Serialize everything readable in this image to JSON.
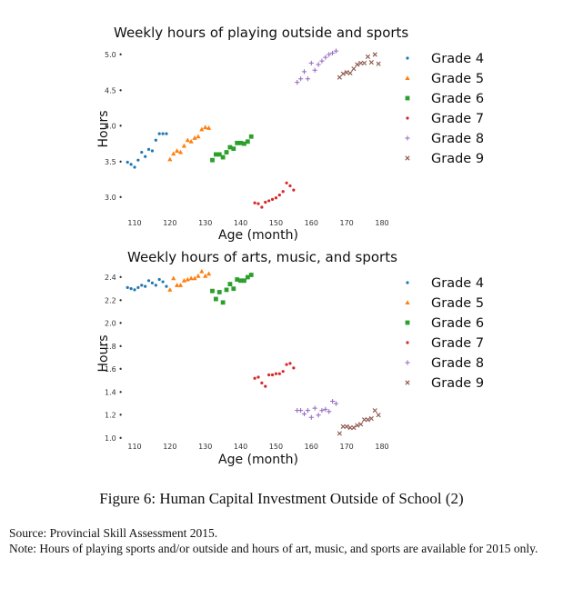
{
  "chart_data": [
    {
      "type": "scatter",
      "title": "Weekly hours of playing outside and sports",
      "xlabel": "Age (month)",
      "ylabel": "Hours",
      "xlim": [
        107,
        181
      ],
      "ylim": [
        2.8,
        5.1
      ],
      "xticks": [
        110,
        120,
        130,
        140,
        150,
        160,
        170,
        180
      ],
      "yticks": [
        3.0,
        3.5,
        4.0,
        4.5,
        5.0
      ],
      "ytick_labels": [
        "3.0",
        "3.5",
        "4.0",
        "4.5",
        "5.0"
      ],
      "legend": "right",
      "series": [
        {
          "name": "Grade 4",
          "color": "#1f77b4",
          "marker": "dot",
          "x": [
            108,
            109,
            110,
            111,
            112,
            113,
            114,
            115,
            116,
            117,
            118,
            119
          ],
          "y": [
            3.49,
            3.46,
            3.42,
            3.52,
            3.63,
            3.57,
            3.67,
            3.65,
            3.8,
            3.89,
            3.89,
            3.89
          ]
        },
        {
          "name": "Grade 5",
          "color": "#ff7f0e",
          "marker": "triangle",
          "x": [
            120,
            121,
            122,
            123,
            124,
            125,
            126,
            127,
            128,
            129,
            130,
            131
          ],
          "y": [
            3.53,
            3.61,
            3.65,
            3.63,
            3.72,
            3.8,
            3.78,
            3.83,
            3.85,
            3.95,
            3.98,
            3.97
          ]
        },
        {
          "name": "Grade 6",
          "color": "#2ca02c",
          "marker": "square",
          "x": [
            132,
            133,
            134,
            135,
            136,
            137,
            138,
            139,
            140,
            141,
            142,
            143
          ],
          "y": [
            3.52,
            3.6,
            3.6,
            3.56,
            3.63,
            3.7,
            3.68,
            3.76,
            3.76,
            3.75,
            3.78,
            3.85
          ]
        },
        {
          "name": "Grade 7",
          "color": "#d62728",
          "marker": "dot",
          "x": [
            144,
            145,
            146,
            147,
            148,
            149,
            150,
            151,
            152,
            153,
            154,
            155
          ],
          "y": [
            2.92,
            2.91,
            2.86,
            2.93,
            2.95,
            2.97,
            2.99,
            3.03,
            3.08,
            3.2,
            3.16,
            3.1
          ]
        },
        {
          "name": "Grade 8",
          "color": "#9467bd",
          "marker": "plus",
          "x": [
            156,
            157,
            158,
            159,
            160,
            161,
            162,
            163,
            164,
            165,
            166,
            167
          ],
          "y": [
            4.61,
            4.66,
            4.76,
            4.66,
            4.88,
            4.78,
            4.86,
            4.91,
            4.96,
            5.0,
            5.02,
            5.05
          ]
        },
        {
          "name": "Grade 9",
          "color": "#8c564b",
          "marker": "x",
          "x": [
            168,
            169,
            170,
            171,
            172,
            173,
            174,
            175,
            176,
            177,
            178,
            179
          ],
          "y": [
            4.68,
            4.73,
            4.75,
            4.74,
            4.8,
            4.86,
            4.88,
            4.88,
            4.97,
            4.89,
            5.0,
            4.87
          ]
        }
      ]
    },
    {
      "type": "scatter",
      "title": "Weekly hours of arts, music, and sports",
      "xlabel": "Age (month)",
      "ylabel": "Hours",
      "xlim": [
        107,
        181
      ],
      "ylim": [
        0.96,
        2.48
      ],
      "xticks": [
        110,
        120,
        130,
        140,
        150,
        160,
        170,
        180
      ],
      "yticks": [
        1.0,
        1.2,
        1.4,
        1.6,
        1.8,
        2.0,
        2.2,
        2.4
      ],
      "ytick_labels": [
        "1.0",
        "1.2",
        "1.4",
        "1.6",
        "1.8",
        "2.0",
        "2.2",
        "2.4"
      ],
      "legend": "right",
      "series": [
        {
          "name": "Grade 4",
          "color": "#1f77b4",
          "marker": "dot",
          "x": [
            108,
            109,
            110,
            111,
            112,
            113,
            114,
            115,
            116,
            117,
            118,
            119
          ],
          "y": [
            2.31,
            2.3,
            2.29,
            2.31,
            2.33,
            2.32,
            2.37,
            2.35,
            2.33,
            2.38,
            2.36,
            2.32
          ]
        },
        {
          "name": "Grade 5",
          "color": "#ff7f0e",
          "marker": "triangle",
          "x": [
            120,
            121,
            122,
            123,
            124,
            125,
            126,
            127,
            128,
            129,
            130,
            131
          ],
          "y": [
            2.29,
            2.39,
            2.33,
            2.33,
            2.37,
            2.38,
            2.39,
            2.39,
            2.41,
            2.45,
            2.41,
            2.43
          ]
        },
        {
          "name": "Grade 6",
          "color": "#2ca02c",
          "marker": "square",
          "x": [
            132,
            133,
            134,
            135,
            136,
            137,
            138,
            139,
            140,
            141,
            142,
            143
          ],
          "y": [
            2.28,
            2.21,
            2.27,
            2.18,
            2.29,
            2.34,
            2.3,
            2.38,
            2.37,
            2.37,
            2.4,
            2.42
          ]
        },
        {
          "name": "Grade 7",
          "color": "#d62728",
          "marker": "dot",
          "x": [
            144,
            145,
            146,
            147,
            148,
            149,
            150,
            151,
            152,
            153,
            154,
            155
          ],
          "y": [
            1.52,
            1.53,
            1.48,
            1.45,
            1.55,
            1.55,
            1.56,
            1.56,
            1.58,
            1.64,
            1.65,
            1.61
          ]
        },
        {
          "name": "Grade 8",
          "color": "#9467bd",
          "marker": "plus",
          "x": [
            156,
            157,
            158,
            159,
            160,
            161,
            162,
            163,
            164,
            165,
            166,
            167
          ],
          "y": [
            1.24,
            1.24,
            1.21,
            1.24,
            1.18,
            1.26,
            1.2,
            1.24,
            1.25,
            1.23,
            1.32,
            1.3
          ]
        },
        {
          "name": "Grade 9",
          "color": "#8c564b",
          "marker": "x",
          "x": [
            168,
            169,
            170,
            171,
            172,
            173,
            174,
            175,
            176,
            177,
            178,
            179
          ],
          "y": [
            1.04,
            1.1,
            1.1,
            1.09,
            1.09,
            1.11,
            1.12,
            1.16,
            1.16,
            1.17,
            1.24,
            1.2
          ]
        }
      ]
    }
  ],
  "caption": "Figure 6: Human Capital Investment Outside of School (2)",
  "source": "Source: Provincial Skill Assessment 2015.",
  "note": "Note: Hours of playing sports and/or outside and hours of art, music, and sports are available for 2015 only."
}
